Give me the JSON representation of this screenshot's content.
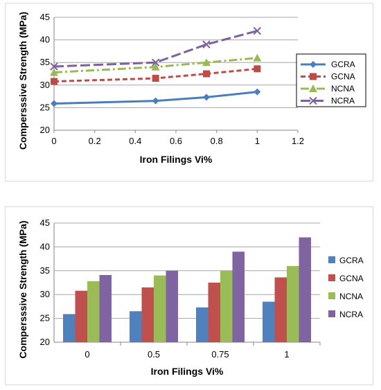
{
  "chart_data": [
    {
      "type": "line",
      "xlabel": "Iron Filings Vi%",
      "ylabel": "Compersssive Strength (MPa)",
      "xlim": [
        0,
        1.2
      ],
      "ylim": [
        20,
        45
      ],
      "x_ticks": [
        "0",
        "0.2",
        "0.4",
        "0.6",
        "0.8",
        "1",
        "1.2"
      ],
      "y_ticks": [
        "20",
        "25",
        "30",
        "35",
        "40",
        "45"
      ],
      "x": [
        0,
        0.5,
        0.75,
        1
      ],
      "grid": "horizontal",
      "legend_position": "right",
      "series": [
        {
          "name": "GCRA",
          "values": [
            25.9,
            26.5,
            27.3,
            28.5
          ],
          "color": "#4a7ebb",
          "marker": "diamond",
          "dash": "solid"
        },
        {
          "name": "GCNA",
          "values": [
            30.8,
            31.5,
            32.5,
            33.6
          ],
          "color": "#be4b48",
          "marker": "square",
          "dash": "dashed"
        },
        {
          "name": "NCNA",
          "values": [
            32.8,
            34.0,
            35.0,
            36.0
          ],
          "color": "#98b954",
          "marker": "triangle",
          "dash": "dashdot"
        },
        {
          "name": "NCRA",
          "values": [
            34.1,
            35.0,
            39.0,
            42.0
          ],
          "color": "#7d60a0",
          "marker": "x",
          "dash": "longdash"
        }
      ]
    },
    {
      "type": "bar",
      "xlabel": "Iron Filings Vi%",
      "ylabel": "Compersssive Strength (MPa)",
      "ylim": [
        20,
        45
      ],
      "y_ticks": [
        "20",
        "25",
        "30",
        "35",
        "40",
        "45"
      ],
      "categories": [
        "0",
        "0.5",
        "0.75",
        "1"
      ],
      "grid": "horizontal",
      "legend_position": "right",
      "series": [
        {
          "name": "GCRA",
          "values": [
            25.9,
            26.5,
            27.3,
            28.5
          ],
          "color": "#4f81bd"
        },
        {
          "name": "GCNA",
          "values": [
            30.8,
            31.5,
            32.5,
            33.6
          ],
          "color": "#c0504d"
        },
        {
          "name": "NCNA",
          "values": [
            32.8,
            34.0,
            35.0,
            36.0
          ],
          "color": "#9bbb59"
        },
        {
          "name": "NCRA",
          "values": [
            34.1,
            35.0,
            39.0,
            42.0
          ],
          "color": "#8064a2"
        }
      ]
    }
  ]
}
